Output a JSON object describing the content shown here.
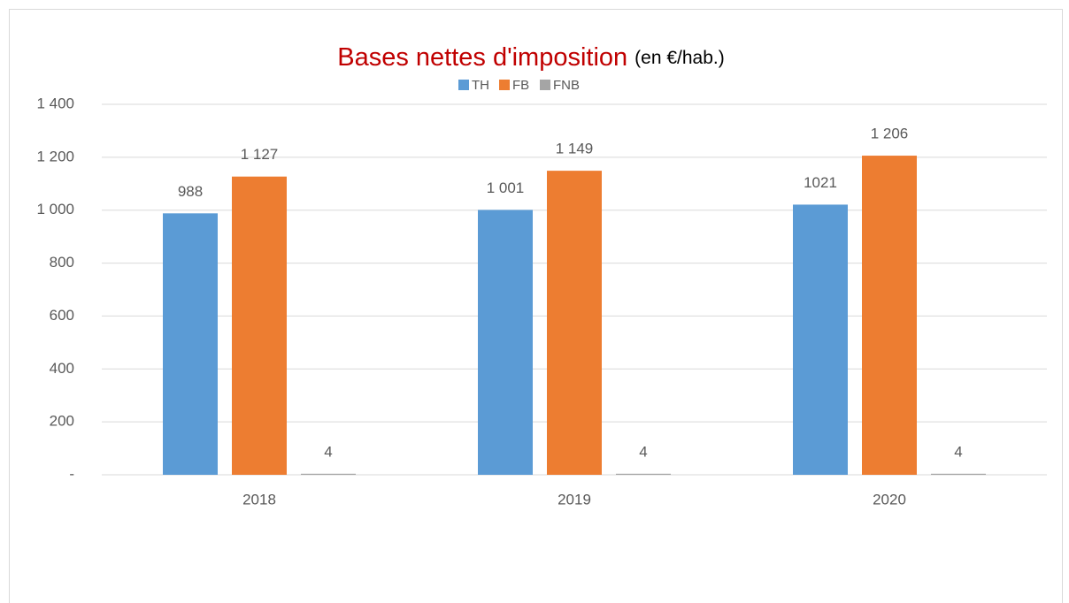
{
  "chart_data": {
    "type": "bar",
    "title": "Bases nettes d'imposition",
    "subtitle": "(en €/hab.)",
    "categories": [
      "2018",
      "2019",
      "2020"
    ],
    "series": [
      {
        "name": "TH",
        "color": "#5b9bd5",
        "values": [
          988,
          1001,
          1021
        ],
        "value_labels": [
          "988",
          "1 001",
          "1021"
        ]
      },
      {
        "name": "FB",
        "color": "#ed7d31",
        "values": [
          1127,
          1149,
          1206
        ],
        "value_labels": [
          "1 127",
          "1 149",
          "1 206"
        ]
      },
      {
        "name": "FNB",
        "color": "#a5a5a5",
        "values": [
          4,
          4,
          4
        ]
      }
    ],
    "ylim": [
      0,
      1400
    ],
    "yticks": [
      {
        "value": 0,
        "label": "-"
      },
      200,
      400,
      600,
      800,
      {
        "value": 1000,
        "label": "1 000"
      },
      {
        "value": 1200,
        "label": "1 200"
      },
      {
        "value": 1400,
        "label": "1 400"
      }
    ],
    "grid": true,
    "legend": "top"
  }
}
